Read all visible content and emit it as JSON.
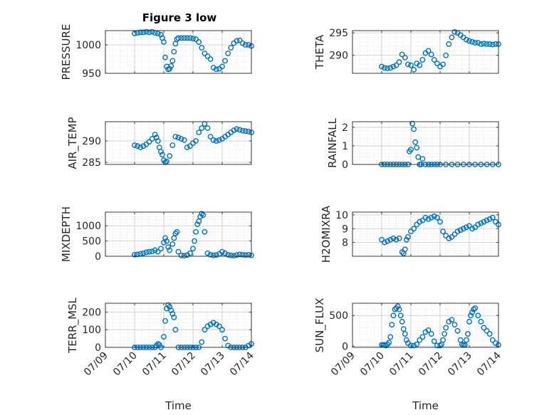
{
  "figure": {
    "title": "Figure 3 low"
  },
  "style": {
    "marker_color": "#0072bd",
    "grid_color": "#c8c8c8",
    "axis_color": "#262626"
  },
  "x_ticks": [
    "07/09",
    "07/10",
    "07/11",
    "07/12",
    "07/13",
    "07/14"
  ],
  "chart_data": [
    {
      "type": "scatter",
      "ylabel": "PRESSURE",
      "xlabel": "",
      "xlim": [
        9.0,
        14.0
      ],
      "ylim": [
        950,
        1025
      ],
      "yticks": [
        950,
        1000
      ],
      "ytick_labels": [
        "950",
        "1000"
      ],
      "grid": true,
      "x": [
        10.0,
        10.1,
        10.2,
        10.3,
        10.4,
        10.5,
        10.6,
        10.7,
        10.8,
        10.9,
        10.95,
        11.0,
        11.05,
        11.1,
        11.15,
        11.2,
        11.25,
        11.3,
        11.35,
        11.4,
        11.45,
        11.5,
        11.6,
        11.7,
        11.8,
        11.9,
        12.0,
        12.1,
        12.2,
        12.3,
        12.4,
        12.5,
        12.6,
        12.7,
        12.8,
        12.9,
        13.0,
        13.1,
        13.2,
        13.3,
        13.4,
        13.5,
        13.6,
        13.7,
        13.8,
        13.9,
        14.0
      ],
      "y": [
        1020,
        1021,
        1022,
        1022,
        1023,
        1022,
        1023,
        1021,
        1020,
        1018,
        1012,
        1005,
        978,
        962,
        957,
        958,
        963,
        972,
        988,
        1002,
        1010,
        1012,
        1012,
        1012,
        1012,
        1012,
        1011,
        1010,
        1005,
        995,
        985,
        980,
        975,
        960,
        957,
        958,
        962,
        972,
        985,
        995,
        1003,
        1007,
        1008,
        1003,
        1000,
        1000,
        998
      ],
      "series_color": "#0072bd"
    },
    {
      "type": "scatter",
      "ylabel": "THETA",
      "xlabel": "",
      "xlim": [
        9.0,
        14.0
      ],
      "ylim": [
        286,
        295.5
      ],
      "yticks": [
        290,
        295
      ],
      "ytick_labels": [
        "290",
        "295"
      ],
      "grid": true,
      "x": [
        10.0,
        10.1,
        10.2,
        10.3,
        10.4,
        10.5,
        10.6,
        10.7,
        10.8,
        10.9,
        11.0,
        11.1,
        11.2,
        11.3,
        11.4,
        11.5,
        11.6,
        11.7,
        11.8,
        11.9,
        12.0,
        12.1,
        12.2,
        12.3,
        12.4,
        12.5,
        12.6,
        12.7,
        12.8,
        12.9,
        13.0,
        13.1,
        13.2,
        13.3,
        13.4,
        13.5,
        13.6,
        13.7,
        13.8,
        13.9,
        14.0
      ],
      "y": [
        287.5,
        287.2,
        287.1,
        287.2,
        287.5,
        287.8,
        288.5,
        290.2,
        289.5,
        288.0,
        287.8,
        286.8,
        288.2,
        287.8,
        289.0,
        290.5,
        291.0,
        290.2,
        289.0,
        288.2,
        287.5,
        288.0,
        290.0,
        292.5,
        294.0,
        295.2,
        295.0,
        294.5,
        294.0,
        293.5,
        293.2,
        293.0,
        292.8,
        292.8,
        292.5,
        292.6,
        292.5,
        292.5,
        292.4,
        292.5,
        292.5
      ],
      "series_color": "#0072bd"
    },
    {
      "type": "scatter",
      "ylabel": "AIR_TEMP",
      "xlabel": "",
      "xlim": [
        9.0,
        14.0
      ],
      "ylim": [
        284.5,
        294.5
      ],
      "yticks": [
        285,
        290
      ],
      "ytick_labels": [
        "285",
        "290"
      ],
      "grid": true,
      "x": [
        10.0,
        10.1,
        10.2,
        10.3,
        10.4,
        10.5,
        10.6,
        10.7,
        10.75,
        10.8,
        10.85,
        10.9,
        10.95,
        11.0,
        11.05,
        11.1,
        11.2,
        11.3,
        11.4,
        11.5,
        11.6,
        11.7,
        11.8,
        11.9,
        12.0,
        12.1,
        12.2,
        12.3,
        12.4,
        12.5,
        12.6,
        12.7,
        12.8,
        12.9,
        13.0,
        13.1,
        13.2,
        13.3,
        13.4,
        13.5,
        13.6,
        13.7,
        13.8,
        13.9,
        14.0
      ],
      "y": [
        289,
        288.8,
        288.5,
        288.8,
        289.2,
        289.8,
        290.5,
        291.5,
        290.8,
        290,
        288.5,
        287.5,
        286.8,
        285.5,
        285,
        285.2,
        286.5,
        289,
        291,
        290.8,
        290.5,
        290.2,
        288.5,
        288.8,
        289.5,
        290,
        292,
        293,
        294,
        293,
        291,
        290.2,
        290,
        290.2,
        290.5,
        291,
        291.5,
        292,
        292.5,
        292.8,
        292.6,
        292.4,
        292.3,
        292.2,
        292.0
      ],
      "series_color": "#0072bd"
    },
    {
      "type": "scatter",
      "ylabel": "RAINFALL",
      "xlabel": "",
      "xlim": [
        9.0,
        14.0
      ],
      "ylim": [
        0,
        2.3
      ],
      "yticks": [
        0,
        1,
        2
      ],
      "ytick_labels": [
        "0",
        "1",
        "2"
      ],
      "grid": true,
      "x": [
        10.0,
        10.1,
        10.2,
        10.3,
        10.4,
        10.5,
        10.6,
        10.7,
        10.8,
        10.9,
        10.95,
        11.0,
        11.05,
        11.1,
        11.15,
        11.2,
        11.25,
        11.3,
        11.35,
        11.4,
        11.5,
        11.6,
        11.7,
        11.8,
        11.9,
        12.0,
        12.2,
        12.4,
        12.6,
        12.8,
        13.0,
        13.2,
        13.4,
        13.6,
        13.8,
        14.0
      ],
      "y": [
        0,
        0,
        0,
        0,
        0,
        0,
        0,
        0,
        0,
        0,
        0.7,
        0.8,
        2.2,
        1.9,
        1.2,
        0.9,
        0.4,
        0,
        0,
        0.3,
        0,
        0,
        0,
        0,
        0,
        0,
        0,
        0,
        0,
        0,
        0,
        0,
        0,
        0,
        0,
        0
      ],
      "series_color": "#0072bd"
    },
    {
      "type": "scatter",
      "ylabel": "MIXDEPTH",
      "xlabel": "",
      "xlim": [
        9.0,
        14.0
      ],
      "ylim": [
        0,
        1450
      ],
      "yticks": [
        0,
        500,
        1000
      ],
      "ytick_labels": [
        "0",
        "500",
        "1000"
      ],
      "grid": true,
      "x": [
        10.0,
        10.1,
        10.2,
        10.3,
        10.4,
        10.5,
        10.6,
        10.7,
        10.8,
        10.9,
        11.0,
        11.05,
        11.1,
        11.15,
        11.2,
        11.3,
        11.35,
        11.4,
        11.45,
        11.5,
        11.6,
        11.7,
        11.8,
        11.9,
        12.0,
        12.05,
        12.1,
        12.15,
        12.2,
        12.25,
        12.3,
        12.35,
        12.4,
        12.5,
        12.6,
        12.7,
        12.8,
        12.9,
        13.0,
        13.1,
        13.2,
        13.3,
        13.4,
        13.5,
        13.6,
        13.7,
        13.8,
        13.9,
        14.0
      ],
      "y": [
        50,
        60,
        80,
        100,
        130,
        150,
        160,
        200,
        150,
        250,
        450,
        600,
        500,
        300,
        200,
        400,
        600,
        750,
        800,
        150,
        30,
        20,
        40,
        100,
        250,
        500,
        800,
        1050,
        1150,
        1300,
        1400,
        1350,
        800,
        100,
        50,
        30,
        40,
        80,
        150,
        100,
        50,
        30,
        20,
        40,
        60,
        50,
        40,
        50,
        30
      ],
      "series_color": "#0072bd"
    },
    {
      "type": "scatter",
      "ylabel": "H2OMIXRA",
      "xlabel": "",
      "xlim": [
        9.0,
        14.0
      ],
      "ylim": [
        7,
        10.2
      ],
      "yticks": [
        8,
        9,
        10
      ],
      "ytick_labels": [
        "8",
        "9",
        "10"
      ],
      "grid": true,
      "x": [
        10.0,
        10.1,
        10.2,
        10.3,
        10.4,
        10.5,
        10.6,
        10.7,
        10.75,
        10.8,
        10.85,
        10.9,
        11.0,
        11.1,
        11.2,
        11.3,
        11.4,
        11.5,
        11.6,
        11.7,
        11.8,
        11.9,
        12.0,
        12.1,
        12.2,
        12.3,
        12.4,
        12.5,
        12.6,
        12.7,
        12.8,
        12.9,
        13.0,
        13.1,
        13.2,
        13.3,
        13.4,
        13.5,
        13.6,
        13.7,
        13.8,
        13.9,
        14.0
      ],
      "y": [
        8.2,
        8.0,
        8.1,
        8.2,
        8.3,
        8.2,
        8.3,
        7.3,
        7.2,
        7.5,
        8.2,
        8.4,
        8.8,
        9.0,
        9.3,
        9.5,
        9.6,
        9.8,
        9.7,
        9.8,
        9.9,
        9.8,
        9.5,
        8.8,
        8.5,
        8.3,
        8.4,
        8.6,
        8.8,
        8.9,
        9.0,
        9.1,
        9.2,
        9.0,
        9.1,
        9.3,
        9.4,
        9.5,
        9.6,
        9.7,
        9.8,
        9.5,
        9.3
      ],
      "series_color": "#0072bd"
    },
    {
      "type": "scatter",
      "ylabel": "TERR_MSL",
      "xlabel": "Time",
      "xlim": [
        9.0,
        14.0
      ],
      "ylim": [
        0,
        250
      ],
      "yticks": [
        0,
        100,
        200
      ],
      "ytick_labels": [
        "0",
        "100",
        "200"
      ],
      "grid": true,
      "x": [
        10.0,
        10.1,
        10.2,
        10.3,
        10.4,
        10.5,
        10.6,
        10.7,
        10.75,
        10.8,
        10.85,
        10.9,
        11.0,
        11.05,
        11.1,
        11.15,
        11.2,
        11.25,
        11.3,
        11.35,
        11.4,
        11.5,
        11.6,
        11.7,
        11.8,
        11.9,
        12.0,
        12.1,
        12.2,
        12.3,
        12.4,
        12.5,
        12.6,
        12.7,
        12.8,
        12.9,
        13.0,
        13.1,
        13.2,
        13.3,
        13.4,
        13.5,
        13.6,
        13.7,
        13.8,
        13.9,
        14.0
      ],
      "y": [
        0,
        0,
        0,
        0,
        0,
        0,
        0,
        0,
        10,
        20,
        15,
        0,
        60,
        150,
        220,
        240,
        230,
        210,
        190,
        170,
        100,
        0,
        0,
        0,
        0,
        0,
        0,
        0,
        0,
        30,
        100,
        120,
        130,
        140,
        130,
        120,
        100,
        50,
        10,
        0,
        0,
        0,
        0,
        0,
        0,
        10,
        20
      ],
      "series_color": "#0072bd"
    },
    {
      "type": "scatter",
      "ylabel": "SUN_FLUX",
      "xlabel": "Time",
      "xlim": [
        9.0,
        14.0
      ],
      "ylim": [
        -20,
        700
      ],
      "yticks": [
        0,
        500
      ],
      "ytick_labels": [
        "0",
        "500"
      ],
      "grid": true,
      "x": [
        10.0,
        10.05,
        10.1,
        10.15,
        10.2,
        10.25,
        10.3,
        10.35,
        10.4,
        10.45,
        10.5,
        10.55,
        10.6,
        10.65,
        10.7,
        10.75,
        10.8,
        10.85,
        10.9,
        11.0,
        11.1,
        11.2,
        11.3,
        11.4,
        11.5,
        11.6,
        11.7,
        11.8,
        11.9,
        12.0,
        12.05,
        12.1,
        12.15,
        12.2,
        12.3,
        12.4,
        12.5,
        12.6,
        12.7,
        12.75,
        12.8,
        12.85,
        12.9,
        12.95,
        13.0,
        13.05,
        13.1,
        13.15,
        13.2,
        13.3,
        13.4,
        13.5,
        13.6,
        13.7,
        13.8,
        13.9,
        14.0
      ],
      "y": [
        20,
        20,
        20,
        10,
        30,
        60,
        150,
        350,
        500,
        600,
        620,
        650,
        600,
        500,
        400,
        280,
        200,
        100,
        50,
        10,
        10,
        30,
        100,
        150,
        230,
        260,
        200,
        80,
        10,
        10,
        30,
        100,
        200,
        300,
        400,
        430,
        350,
        250,
        100,
        30,
        20,
        20,
        100,
        200,
        400,
        500,
        550,
        600,
        620,
        500,
        400,
        300,
        250,
        200,
        100,
        50,
        20
      ],
      "series_color": "#0072bd"
    }
  ]
}
